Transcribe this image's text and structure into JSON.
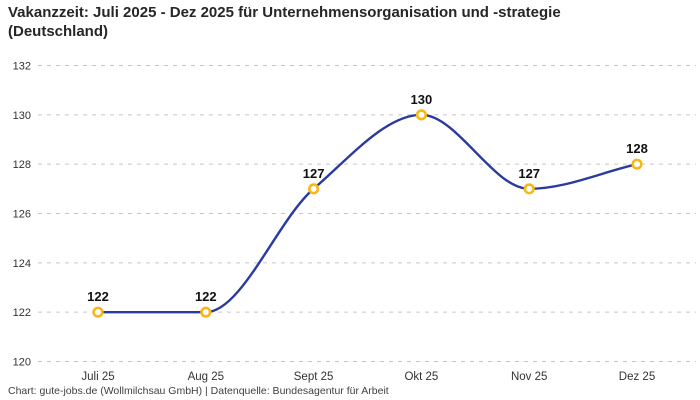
{
  "header": {
    "title_line1": "Vakanzzeit: Juli 2025 - Dez 2025 für Unternehmensorganisation und -strategie",
    "title_line2": "(Deutschland)"
  },
  "footer": {
    "attribution": "Chart: gute-jobs.de (Wollmilchsau GmbH) | Datenquelle: Bundesagentur für Arbeit"
  },
  "chart_data": {
    "type": "line",
    "title": "Vakanzzeit: Juli 2025 - Dez 2025 für Unternehmensorganisation und -strategie (Deutschland)",
    "categories": [
      "Juli 25",
      "Aug 25",
      "Sept 25",
      "Okt 25",
      "Nov 25",
      "Dez 25"
    ],
    "values": [
      122,
      122,
      127,
      130,
      127,
      128
    ],
    "xlabel": "",
    "ylabel": "",
    "ylim": [
      120,
      132
    ],
    "yticks": [
      120,
      122,
      124,
      126,
      128,
      130,
      132
    ],
    "grid": "horizontal-dashed",
    "legend": "none",
    "curve": "monotone",
    "data_labels": true,
    "colors": {
      "line": "#2a3a9e",
      "marker_stroke": "#f8b716",
      "marker_fill": "#ffffff",
      "grid": "#c6c6c6",
      "tick_text": "#333333",
      "data_label_text": "#111111"
    }
  }
}
